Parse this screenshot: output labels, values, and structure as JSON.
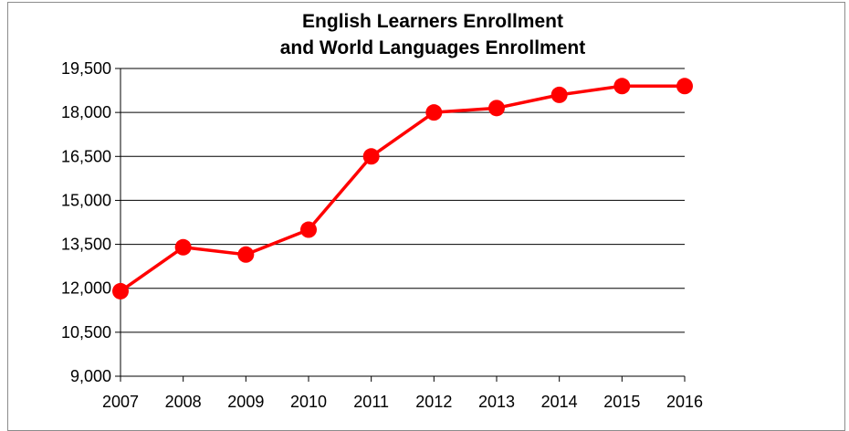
{
  "chart_data": {
    "type": "line",
    "title_line1": "English Learners Enrollment",
    "title_line2": "and World Languages Enrollment",
    "xlabel": "",
    "ylabel": "",
    "categories": [
      "2007",
      "2008",
      "2009",
      "2010",
      "2011",
      "2012",
      "2013",
      "2014",
      "2015",
      "2016"
    ],
    "series": [
      {
        "values": [
          11900,
          13400,
          13150,
          14000,
          16500,
          18000,
          18150,
          18600,
          18900,
          18900
        ]
      }
    ],
    "ylim": [
      9000,
      19500
    ],
    "yticks": [
      9000,
      10500,
      12000,
      13500,
      15000,
      16500,
      18000,
      19500
    ],
    "ytick_labels": [
      "9,000",
      "10,500",
      "12,000",
      "13,500",
      "15,000",
      "16,500",
      "18,000",
      "19,500"
    ],
    "grid": true,
    "legend": "none",
    "colors": {
      "line": "#ff0000",
      "grid": "#000000",
      "axis": "#000000"
    }
  }
}
